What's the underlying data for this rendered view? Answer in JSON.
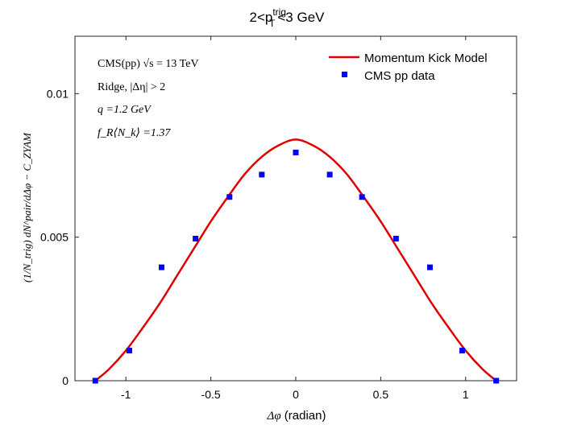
{
  "chart_data": {
    "type": "line",
    "title_main": "2<p",
    "title_sup": "trig",
    "title_sub": "T",
    "title_rest": "<3 GeV",
    "xlabel_symbol": "Δφ",
    "xlabel_unit": " (radian)",
    "ylabel": "(1/N_trig) dN^pair/dΔφ − C_ZYAM",
    "xlim": [
      -1.3,
      1.3
    ],
    "ylim": [
      0,
      0.012
    ],
    "xticks": [
      -1,
      -0.5,
      0,
      0.5,
      1
    ],
    "xtick_labels": [
      "-1",
      "-0.5",
      "0",
      "0.5",
      "1"
    ],
    "yticks": [
      0,
      0.005,
      0.01
    ],
    "ytick_labels": [
      "0",
      "0.005",
      "0.01"
    ],
    "grid": false,
    "legend_position": "top-right",
    "annotations": [
      "CMS(pp) √s = 13 TeV",
      "Ridge, |Δη| > 2",
      "q =1.2 GeV",
      "f_R⟨N_k⟩ =1.37"
    ],
    "series": [
      {
        "name": "Momentum Kick Model",
        "kind": "line",
        "color": "#e00000",
        "x": [
          -1.18,
          -1.1,
          -1.0,
          -0.9,
          -0.8,
          -0.7,
          -0.6,
          -0.5,
          -0.4,
          -0.3,
          -0.2,
          -0.1,
          0.0,
          0.1,
          0.2,
          0.3,
          0.4,
          0.5,
          0.6,
          0.7,
          0.8,
          0.9,
          1.0,
          1.1,
          1.18
        ],
        "y": [
          0.0,
          0.0004,
          0.00105,
          0.00185,
          0.0027,
          0.00365,
          0.0046,
          0.00555,
          0.0064,
          0.0072,
          0.0078,
          0.0082,
          0.0084,
          0.0082,
          0.0078,
          0.0072,
          0.0064,
          0.00555,
          0.0046,
          0.00365,
          0.0027,
          0.00185,
          0.00105,
          0.0004,
          0.0
        ]
      },
      {
        "name": "CMS pp data",
        "kind": "scatter",
        "color": "#0000ff",
        "x": [
          -1.18,
          -0.98,
          -0.79,
          -0.59,
          -0.39,
          -0.2,
          0.0,
          0.2,
          0.39,
          0.59,
          0.79,
          0.98,
          1.18
        ],
        "y": [
          0.0,
          0.00105,
          0.00395,
          0.00495,
          0.0064,
          0.00718,
          0.00795,
          0.00718,
          0.0064,
          0.00495,
          0.00395,
          0.00105,
          0.0
        ]
      }
    ]
  }
}
